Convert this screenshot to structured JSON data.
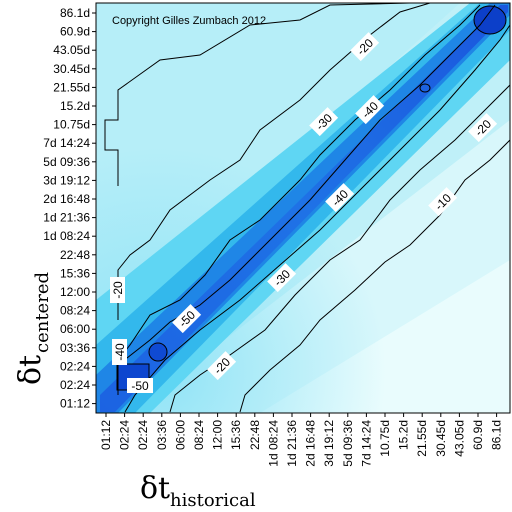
{
  "chart_data": {
    "type": "heatmap",
    "copyright": "Copyright Gilles Zumbach 2012",
    "x_label": {
      "symbol": "δt",
      "subscript": "historical"
    },
    "y_label": {
      "symbol": "δt",
      "subscript": "centered"
    },
    "x_ticks": [
      "01:12",
      "02:24",
      "02:24",
      "03:36",
      "06:00",
      "08:24",
      "12:00",
      "15:36",
      "22:48",
      "1d 08:24",
      "1d 21:36",
      "2d 16:48",
      "3d 19:12",
      "5d 09:36",
      "7d 14:24",
      "10.75d",
      "15.2d",
      "21.55d",
      "30.45d",
      "43.05d",
      "60.9d",
      "86.1d"
    ],
    "y_ticks": [
      "86.1d",
      "60.9d",
      "43.05d",
      "30.45d",
      "21.55d",
      "15.2d",
      "10.75d",
      "7d 14:24",
      "5d 09:36",
      "3d 19:12",
      "2d 16:48",
      "1d 21:36",
      "1d 08:24",
      "22:48",
      "15:36",
      "12:00",
      "08:24",
      "06:00",
      "03:36",
      "02:24",
      "02:24",
      "01:12"
    ],
    "contour_labels": [
      "-20",
      "-40",
      "-30",
      "-20",
      "-30",
      "-40",
      "-20",
      "-10",
      "-20",
      "-30",
      "-50",
      "-20",
      "-40",
      "-50"
    ],
    "color_scale": {
      "low": "#e6fcfd",
      "mid": "#37c6ef",
      "high": "#0c47d4"
    },
    "grid": false
  }
}
